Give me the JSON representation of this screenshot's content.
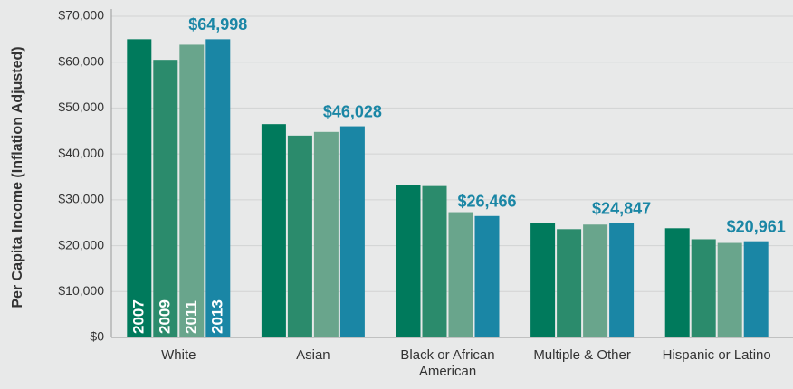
{
  "chart_data": {
    "type": "bar",
    "y_label": "Per Capita Income (Inflation Adjusted)",
    "categories": [
      "White",
      "Asian",
      "Black or African American",
      "Multiple & Other",
      "Hispanic or Latino"
    ],
    "series": [
      {
        "name": "2007",
        "color": "#007a5c",
        "values": [
          65000,
          46500,
          33300,
          25000,
          23800
        ]
      },
      {
        "name": "2009",
        "color": "#2b8b6c",
        "values": [
          60500,
          44000,
          33000,
          23600,
          21400
        ]
      },
      {
        "name": "2011",
        "color": "#69a58c",
        "values": [
          63800,
          44800,
          27300,
          24600,
          20600
        ]
      },
      {
        "name": "2013",
        "color": "#1a86a5",
        "values": [
          64998,
          46028,
          26466,
          24847,
          20961
        ],
        "value_labels": [
          "$64,998",
          "$46,028",
          "$26,466",
          "$24,847",
          "$20,961"
        ]
      }
    ],
    "ylim": [
      0,
      70000
    ],
    "yticks": [
      {
        "value": 0,
        "label": "$0"
      },
      {
        "value": 10000,
        "label": "$10,000"
      },
      {
        "value": 20000,
        "label": "$20,000"
      },
      {
        "value": 30000,
        "label": "$30,000"
      },
      {
        "value": 40000,
        "label": "$40,000"
      },
      {
        "value": 50000,
        "label": "$50,000"
      },
      {
        "value": 60000,
        "label": "$60,000"
      },
      {
        "value": 70000,
        "label": "$70,000"
      }
    ],
    "grid": true
  }
}
